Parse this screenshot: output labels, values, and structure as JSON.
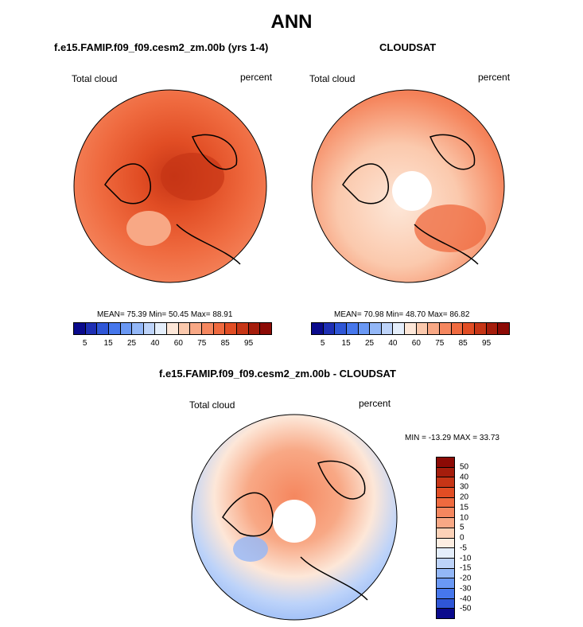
{
  "main_title": "ANN",
  "panels": [
    {
      "title": "f.e15.FAMIP.f09_f09.cesm2_zm.00b (yrs 1-4)",
      "left_label": "Total cloud",
      "right_label": "percent",
      "stats": "MEAN= 75.39  Min= 50.45  Max= 88.91"
    },
    {
      "title": "CLOUDSAT",
      "left_label": "Total cloud",
      "right_label": "percent",
      "stats": "MEAN= 70.98  Min= 48.70  Max= 86.82"
    },
    {
      "title": "f.e15.FAMIP.f09_f09.cesm2_zm.00b - CLOUDSAT",
      "left_label": "Total cloud",
      "right_label": "percent",
      "stats": "MIN = -13.29 MAX =  33.73"
    }
  ],
  "chart_data": [
    {
      "type": "heatmap",
      "projection": "north polar stereographic",
      "title": "f.e15.FAMIP.f09_f09.cesm2_zm.00b (yrs 1-4)",
      "variable": "Total cloud",
      "units": "percent",
      "mean": 75.39,
      "min": 50.45,
      "max": 88.91,
      "colorbar": {
        "orientation": "horizontal",
        "tick_labels": [
          "5",
          "15",
          "25",
          "40",
          "60",
          "75",
          "85",
          "95"
        ],
        "colors": [
          "#0a0a8c",
          "#1e2fb4",
          "#2f56d6",
          "#4677ec",
          "#6a98f4",
          "#93b7f7",
          "#bdd3f9",
          "#e4eefb",
          "#fde7d8",
          "#fbc9ad",
          "#f8a885",
          "#f5875f",
          "#ef6a3f",
          "#e14d24",
          "#c63516",
          "#a51d0c",
          "#8c0a05"
        ]
      }
    },
    {
      "type": "heatmap",
      "projection": "north polar stereographic",
      "title": "CLOUDSAT",
      "variable": "Total cloud",
      "units": "percent",
      "mean": 70.98,
      "min": 48.7,
      "max": 86.82,
      "colorbar": {
        "orientation": "horizontal",
        "tick_labels": [
          "5",
          "15",
          "25",
          "40",
          "60",
          "75",
          "85",
          "95"
        ],
        "colors": [
          "#0a0a8c",
          "#1e2fb4",
          "#2f56d6",
          "#4677ec",
          "#6a98f4",
          "#93b7f7",
          "#bdd3f9",
          "#e4eefb",
          "#fde7d8",
          "#fbc9ad",
          "#f8a885",
          "#f5875f",
          "#ef6a3f",
          "#e14d24",
          "#c63516",
          "#a51d0c",
          "#8c0a05"
        ]
      }
    },
    {
      "type": "heatmap",
      "projection": "north polar stereographic",
      "title": "f.e15.FAMIP.f09_f09.cesm2_zm.00b - CLOUDSAT",
      "variable": "Total cloud",
      "units": "percent",
      "min": -13.29,
      "max": 33.73,
      "colorbar": {
        "orientation": "vertical",
        "tick_labels": [
          "50",
          "40",
          "30",
          "20",
          "15",
          "10",
          "5",
          "0",
          "-5",
          "-10",
          "-15",
          "-20",
          "-30",
          "-40",
          "-50"
        ],
        "colors": [
          "#8c0a05",
          "#a51d0c",
          "#c63516",
          "#e14d24",
          "#ef6a3f",
          "#f5875f",
          "#f8a885",
          "#fcd2b8",
          "#fdeee2",
          "#e4eefb",
          "#bdd3f9",
          "#93b7f7",
          "#6a98f4",
          "#4677ec",
          "#2f56d6",
          "#0a0a8c"
        ]
      }
    }
  ]
}
